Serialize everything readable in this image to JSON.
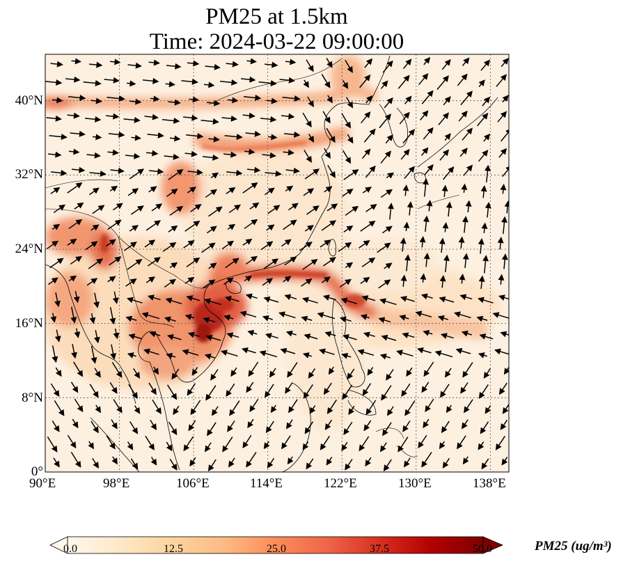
{
  "title_line1": "PM25 at 1.5km",
  "title_line2": "Time: 2024-03-22 09:00:00",
  "map": {
    "extent": {
      "lon_min": 90,
      "lon_max": 140,
      "lat_min": 0,
      "lat_max": 45
    },
    "gridlines": "dotted",
    "lon_ticks": [
      "90°E",
      "98°E",
      "106°E",
      "114°E",
      "122°E",
      "130°E",
      "138°E"
    ],
    "lat_ticks": [
      "0°",
      "8°N",
      "16°N",
      "24°N",
      "32°N",
      "40°N"
    ],
    "layers": [
      "PM2.5 concentration field",
      "wind vectors",
      "coastlines and country borders"
    ],
    "hotspots": [
      {
        "region": "northern Vietnam / Laos",
        "level": "high (~45-50)"
      },
      {
        "region": "South China coast to Taiwan",
        "level": "high (~35-45)"
      },
      {
        "region": "Myanmar / NE India",
        "level": "moderate-high (~30)"
      },
      {
        "region": "North China band ~34-40°N",
        "level": "moderate (~25)"
      },
      {
        "region": "Sichuan basin",
        "level": "moderate (~22)"
      }
    ]
  },
  "colorbar": {
    "min": 0.0,
    "max": 50.0,
    "ticks": [
      "0.0",
      "12.5",
      "25.0",
      "37.5",
      "50.0"
    ],
    "extend": "both",
    "colormap": "OrRd",
    "colors": [
      "#fff7ec",
      "#fee8c8",
      "#fdd49e",
      "#fdbb84",
      "#fc8d59",
      "#ef6548",
      "#d7301f",
      "#b30000",
      "#7f0000"
    ],
    "label": "PM25 (ug/m³)"
  }
}
